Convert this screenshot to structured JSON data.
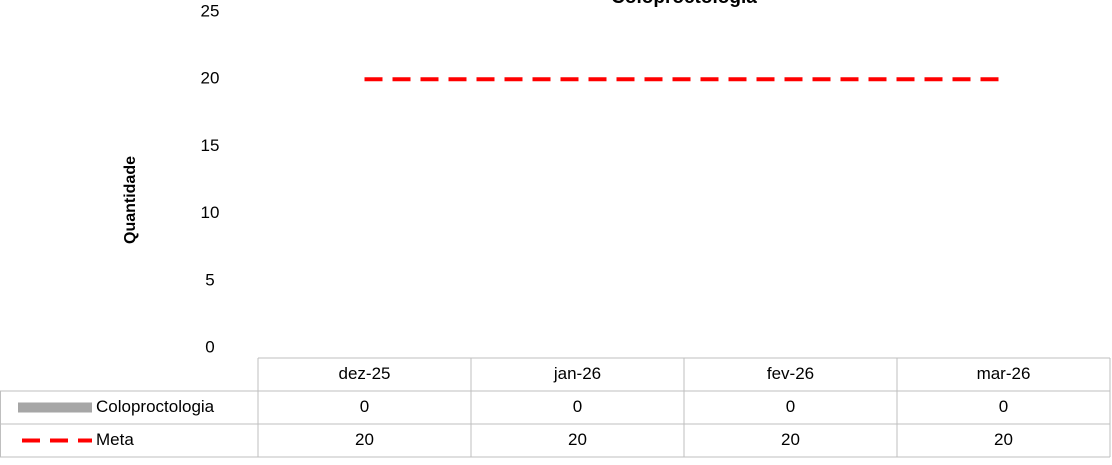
{
  "chart_data": {
    "type": "bar",
    "title": "Coloproctologia",
    "y_label": "Quantidade",
    "categories": [
      "dez-25",
      "jan-26",
      "fev-26",
      "mar-26"
    ],
    "series": [
      {
        "name": "Coloproctologia",
        "color": "#a6a6a6",
        "values": [
          0,
          0,
          0,
          0
        ]
      },
      {
        "name": "Meta",
        "color": "#ff0000",
        "type": "line",
        "dashed": true,
        "values": [
          20,
          20,
          20,
          20
        ]
      }
    ],
    "ylim": [
      0,
      25
    ],
    "yticks": [
      0,
      5,
      10,
      15,
      20,
      25
    ],
    "grid": false,
    "data_table": true
  }
}
